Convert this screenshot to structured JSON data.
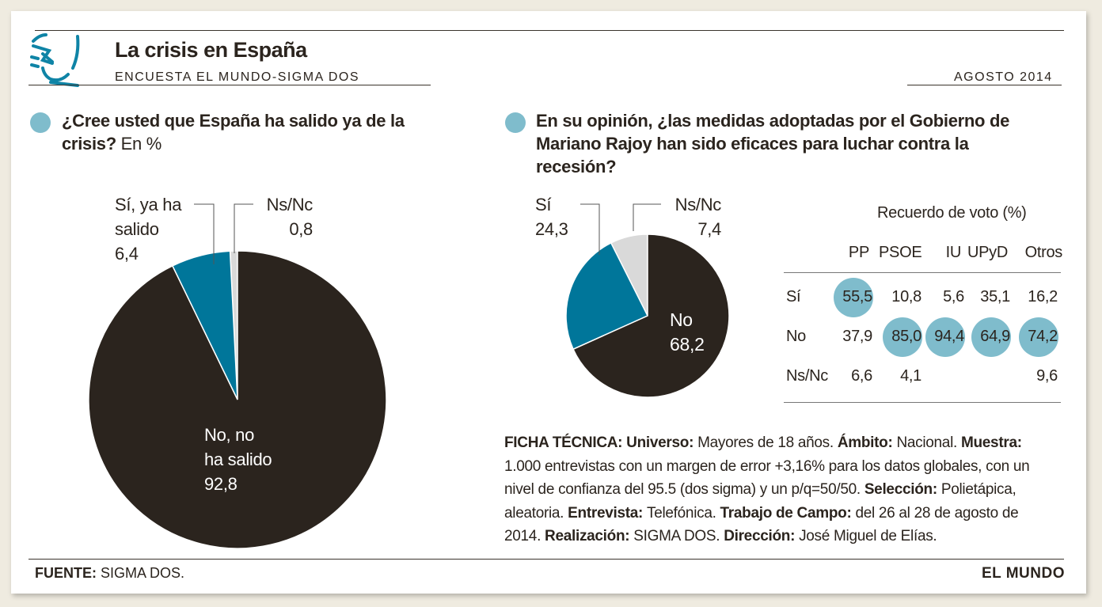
{
  "header": {
    "title": "La crisis en España",
    "subtitle": "ENCUESTA EL MUNDO-SIGMA DOS",
    "date": "AGOSTO 2014"
  },
  "colors": {
    "dark": "#2b241e",
    "blue": "#00769a",
    "grey": "#d9d9d9",
    "bubble": "#7fbccc"
  },
  "q1": {
    "question": "¿Cree usted que España ha salido ya de la crisis?",
    "unit": " En %"
  },
  "q2": {
    "question": "En su opinión, ¿las medidas adoptadas por el Gobierno de Mariano Rajoy han sido eficaces para luchar contra la recesión?"
  },
  "chart_data": [
    {
      "type": "pie",
      "title": "¿Cree usted que España ha salido ya de la crisis? En %",
      "categories": [
        "No, no ha salido",
        "Sí, ya ha salido",
        "Ns/Nc"
      ],
      "values": [
        92.8,
        6.4,
        0.8
      ],
      "labels": {
        "no": [
          "No, no",
          "ha salido",
          "92,8"
        ],
        "si": [
          "Sí, ya ha",
          "salido",
          "6,4"
        ],
        "ns": [
          "Ns/Nc",
          "0,8"
        ]
      }
    },
    {
      "type": "pie",
      "title": "¿Las medidas adoptadas por el Gobierno de Mariano Rajoy han sido eficaces?",
      "categories": [
        "No",
        "Sí",
        "Ns/Nc"
      ],
      "values": [
        68.2,
        24.3,
        7.4
      ],
      "labels": {
        "no": [
          "No",
          "68,2"
        ],
        "si": [
          "Sí",
          "24,3"
        ],
        "ns": [
          "Ns/Nc",
          "7,4"
        ]
      }
    },
    {
      "type": "table",
      "title": "Recuerdo de voto (%)",
      "columns": [
        "PP",
        "PSOE",
        "IU",
        "UPyD",
        "Otros"
      ],
      "rows": [
        {
          "label": "Sí",
          "values": [
            "55,5",
            "10,8",
            "5,6",
            "35,1",
            "16,2"
          ],
          "highlight": [
            true,
            false,
            false,
            false,
            false
          ]
        },
        {
          "label": "No",
          "values": [
            "37,9",
            "85,0",
            "94,4",
            "64,9",
            "74,2"
          ],
          "highlight": [
            false,
            true,
            true,
            true,
            true
          ]
        },
        {
          "label": "Ns/Nc",
          "values": [
            "6,6",
            "4,1",
            "",
            "",
            "9,6"
          ],
          "highlight": [
            false,
            false,
            false,
            false,
            false
          ]
        }
      ]
    }
  ],
  "ficha": [
    {
      "b": true,
      "t": "FICHA TÉCNICA: "
    },
    {
      "b": true,
      "t": "Universo: "
    },
    {
      "b": false,
      "t": "Mayores de 18 años. "
    },
    {
      "b": true,
      "t": "Ámbito: "
    },
    {
      "b": false,
      "t": "Nacional. "
    },
    {
      "b": true,
      "t": "Muestra: "
    },
    {
      "b": false,
      "t": "1.000 entrevistas con un margen de error +3,16% para los datos globales, con un nivel de confianza del 95.5 (dos sigma) y un p/q=50/50. "
    },
    {
      "b": true,
      "t": "Selección: "
    },
    {
      "b": false,
      "t": "Polietápica, aleatoria. "
    },
    {
      "b": true,
      "t": "Entrevista: "
    },
    {
      "b": false,
      "t": "Telefónica. "
    },
    {
      "b": true,
      "t": "Trabajo de Campo: "
    },
    {
      "b": false,
      "t": "del 26 al 28 de agosto de 2014. "
    },
    {
      "b": true,
      "t": "Realización: "
    },
    {
      "b": false,
      "t": "SIGMA DOS. "
    },
    {
      "b": true,
      "t": "Dirección: "
    },
    {
      "b": false,
      "t": "José Miguel de Elías."
    }
  ],
  "footer": {
    "source_label": "FUENTE:",
    "source": " SIGMA DOS.",
    "brand": "EL MUNDO"
  }
}
